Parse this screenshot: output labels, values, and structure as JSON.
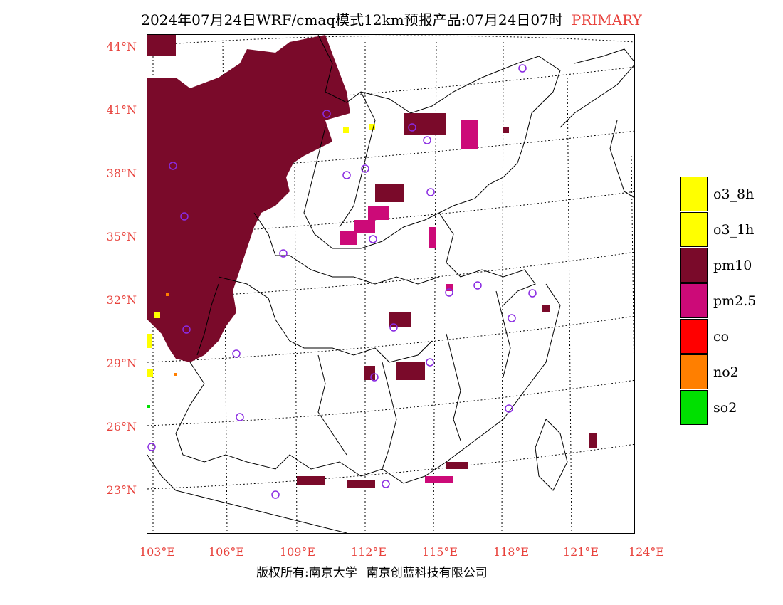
{
  "title": {
    "text": "2024年07月24日WRF/cmaq模式12km预报产品:07月24日07时",
    "tag": "PRIMARY",
    "tag_color": "#e8423c"
  },
  "axes": {
    "lat_labels": [
      "44°N",
      "41°N",
      "38°N",
      "35°N",
      "32°N",
      "29°N",
      "26°N",
      "23°N"
    ],
    "lon_labels": [
      "103°E",
      "106°E",
      "109°E",
      "112°E",
      "115°E",
      "118°E",
      "121°E",
      "124°E"
    ],
    "label_color": "#e8423c"
  },
  "legend": [
    {
      "label": "o3_8h",
      "color": "#ffff00"
    },
    {
      "label": "o3_1h",
      "color": "#ffff00"
    },
    {
      "label": "pm10",
      "color": "#7a0a2a"
    },
    {
      "label": "pm2.5",
      "color": "#cc0a78"
    },
    {
      "label": "co",
      "color": "#ff0000"
    },
    {
      "label": "no2",
      "color": "#ff7f00"
    },
    {
      "label": "so2",
      "color": "#00e000"
    }
  ],
  "footer": {
    "left": "版权所有:南京大学",
    "right": "南京创蓝科技有限公司"
  }
}
